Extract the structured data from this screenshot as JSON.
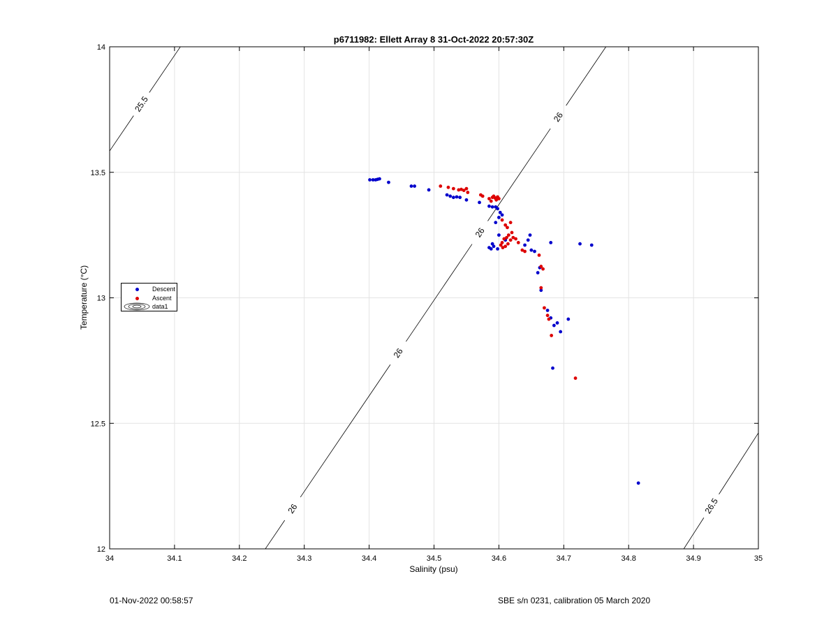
{
  "footer": {
    "timestamp": "01-Nov-2022 00:58:57",
    "sensor": "SBE s/n 0231, calibration 05 March 2020"
  },
  "chart_data": {
    "type": "scatter",
    "title": "p6711982: Ellett Array 8 31-Oct-2022 20:57:30Z",
    "xlabel": "Salinity (psu)",
    "ylabel": "Temperature (°C)",
    "xlim": [
      34,
      35
    ],
    "ylim": [
      12,
      14
    ],
    "xticks": [
      "34",
      "34.1",
      "34.2",
      "34.3",
      "34.4",
      "34.5",
      "34.6",
      "34.7",
      "34.8",
      "34.9",
      "35"
    ],
    "yticks": [
      "12",
      "12.5",
      "13",
      "13.5",
      "14"
    ],
    "grid": true,
    "legend_placement": "left",
    "series": [
      {
        "name": "Descent",
        "color": "#0000cc",
        "points": [
          [
            34.401,
            13.47
          ],
          [
            34.406,
            13.47
          ],
          [
            34.41,
            13.47
          ],
          [
            34.413,
            13.472
          ],
          [
            34.416,
            13.474
          ],
          [
            34.43,
            13.46
          ],
          [
            34.465,
            13.445
          ],
          [
            34.47,
            13.445
          ],
          [
            34.492,
            13.43
          ],
          [
            34.52,
            13.41
          ],
          [
            34.525,
            13.405
          ],
          [
            34.53,
            13.4
          ],
          [
            34.535,
            13.402
          ],
          [
            34.54,
            13.4
          ],
          [
            34.55,
            13.39
          ],
          [
            34.57,
            13.38
          ],
          [
            34.585,
            13.365
          ],
          [
            34.59,
            13.362
          ],
          [
            34.595,
            13.362
          ],
          [
            34.598,
            13.355
          ],
          [
            34.602,
            13.34
          ],
          [
            34.605,
            13.33
          ],
          [
            34.6,
            13.32
          ],
          [
            34.595,
            13.3
          ],
          [
            34.6,
            13.25
          ],
          [
            34.61,
            13.23
          ],
          [
            34.585,
            13.2
          ],
          [
            34.588,
            13.195
          ],
          [
            34.592,
            13.205
          ],
          [
            34.59,
            13.215
          ],
          [
            34.598,
            13.195
          ],
          [
            34.64,
            13.21
          ],
          [
            34.645,
            13.23
          ],
          [
            34.648,
            13.25
          ],
          [
            34.65,
            13.19
          ],
          [
            34.655,
            13.185
          ],
          [
            34.68,
            13.22
          ],
          [
            34.725,
            13.215
          ],
          [
            34.743,
            13.21
          ],
          [
            34.66,
            13.1
          ],
          [
            34.663,
            13.12
          ],
          [
            34.665,
            13.03
          ],
          [
            34.675,
            12.95
          ],
          [
            34.68,
            12.92
          ],
          [
            34.685,
            12.89
          ],
          [
            34.69,
            12.9
          ],
          [
            34.695,
            12.865
          ],
          [
            34.707,
            12.915
          ],
          [
            34.683,
            12.72
          ],
          [
            34.815,
            12.262
          ]
        ]
      },
      {
        "name": "Ascent",
        "color": "#dd0000",
        "points": [
          [
            34.51,
            13.445
          ],
          [
            34.522,
            13.44
          ],
          [
            34.53,
            13.435
          ],
          [
            34.538,
            13.43
          ],
          [
            34.542,
            13.432
          ],
          [
            34.546,
            13.428
          ],
          [
            34.55,
            13.435
          ],
          [
            34.552,
            13.42
          ],
          [
            34.572,
            13.41
          ],
          [
            34.575,
            13.405
          ],
          [
            34.585,
            13.395
          ],
          [
            34.588,
            13.385
          ],
          [
            34.59,
            13.4
          ],
          [
            34.592,
            13.405
          ],
          [
            34.594,
            13.398
          ],
          [
            34.596,
            13.39
          ],
          [
            34.598,
            13.402
          ],
          [
            34.6,
            13.395
          ],
          [
            34.605,
            13.31
          ],
          [
            34.61,
            13.29
          ],
          [
            34.613,
            13.28
          ],
          [
            34.618,
            13.3
          ],
          [
            34.62,
            13.26
          ],
          [
            34.615,
            13.25
          ],
          [
            34.612,
            13.24
          ],
          [
            34.608,
            13.235
          ],
          [
            34.605,
            13.22
          ],
          [
            34.603,
            13.21
          ],
          [
            34.606,
            13.2
          ],
          [
            34.61,
            13.205
          ],
          [
            34.614,
            13.215
          ],
          [
            34.618,
            13.23
          ],
          [
            34.622,
            13.24
          ],
          [
            34.626,
            13.235
          ],
          [
            34.63,
            13.22
          ],
          [
            34.636,
            13.19
          ],
          [
            34.64,
            13.185
          ],
          [
            34.662,
            13.17
          ],
          [
            34.665,
            13.125
          ],
          [
            34.668,
            13.115
          ],
          [
            34.665,
            13.04
          ],
          [
            34.67,
            12.96
          ],
          [
            34.675,
            12.93
          ],
          [
            34.677,
            12.915
          ],
          [
            34.681,
            12.85
          ],
          [
            34.718,
            12.68
          ]
        ]
      }
    ],
    "isopycnals": [
      {
        "label": "25.5",
        "from": [
          34,
          13.585
        ],
        "to": [
          34.109,
          14
        ]
      },
      {
        "label": "26",
        "from": [
          34.24,
          12
        ],
        "to": [
          34.765,
          14
        ]
      },
      {
        "label": "26.5",
        "from": [
          34.885,
          12
        ],
        "to": [
          35,
          12.462
        ]
      }
    ],
    "legend_contour_label": "data1"
  }
}
